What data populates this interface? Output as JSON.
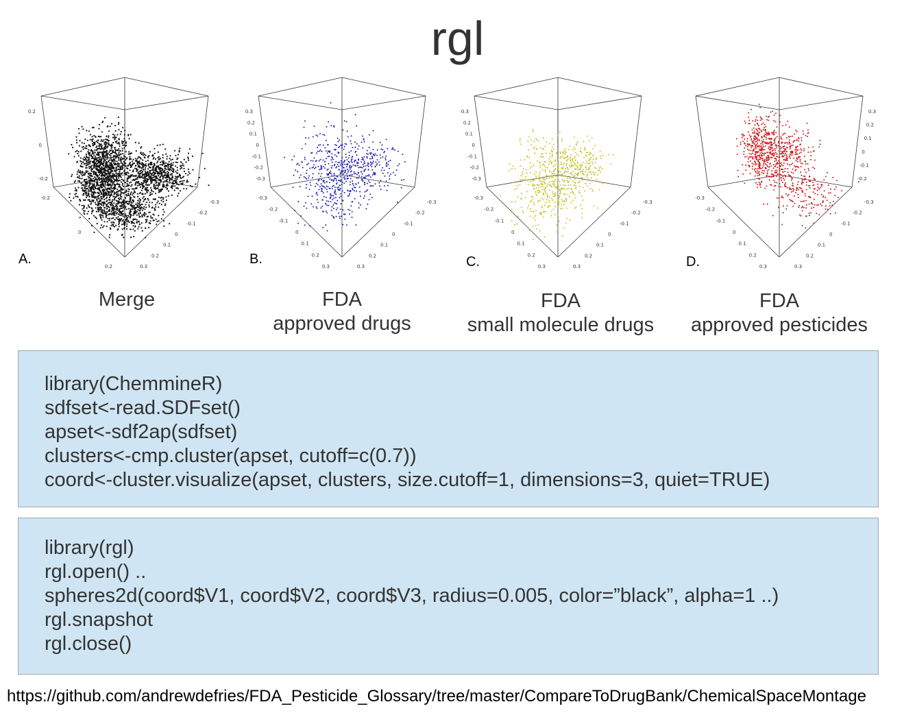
{
  "title": "rgl",
  "panels": [
    {
      "label": "A.",
      "caption": [
        "Merge"
      ],
      "color": "#111111"
    },
    {
      "label": "B.",
      "caption": [
        "FDA",
        "approved drugs"
      ],
      "color": "#1f22b5"
    },
    {
      "label": "C.",
      "caption": [
        "FDA",
        "small molecule drugs"
      ],
      "color": "#c7c32a"
    },
    {
      "label": "D.",
      "caption": [
        "FDA",
        "approved pesticides"
      ],
      "color": "#cc1a1a"
    }
  ],
  "code_block_1": [
    "library(ChemmineR)",
    "sdfset<-read.SDFset()",
    "apset<-sdf2ap(sdfset)",
    "clusters<-cmp.cluster(apset, cutoff=c(0.7))",
    "coord<-cluster.visualize(apset, clusters, size.cutoff=1, dimensions=3, quiet=TRUE)"
  ],
  "code_block_2": [
    "library(rgl)",
    "rgl.open() ..",
    "spheres2d(coord$V1, coord$V2, coord$V3, radius=0.005, color=”black”, alpha=1 ..)",
    "rgl.snapshot",
    "rgl.close()"
  ],
  "url": "https://github.com/andrewdefries/FDA_Pesticide_Glossary/tree/master/CompareToDrugBank/ChemicalSpaceMontage",
  "chart_data": [
    {
      "type": "scatter",
      "title": "Merge",
      "axis_ticks_vertical": [
        "0.2",
        "0",
        "-0.2"
      ],
      "axis_ticks_left": [
        "-0.2",
        "0",
        "0.2"
      ],
      "axis_ticks_right": [
        "-0.3",
        "-0.2",
        "-0.1",
        "0",
        "0.1",
        "0.2",
        "0.3"
      ]
    },
    {
      "type": "scatter",
      "title": "FDA approved drugs",
      "axis_ticks_vertical": [
        "0.3",
        "0.2",
        "0.1",
        "0",
        "-0.1",
        "-0.2",
        "-0.3"
      ],
      "axis_ticks_left": [
        "-0.3",
        "-0.2",
        "-0.1",
        "0",
        "0.1",
        "0.2",
        "0.3"
      ],
      "axis_ticks_right": [
        "-0.3",
        "-0.2",
        "-0.1",
        "0",
        "0.1",
        "0.2",
        "0.3"
      ]
    },
    {
      "type": "scatter",
      "title": "FDA small molecule drugs",
      "axis_ticks_vertical": [
        "0.3",
        "0.2",
        "0.1",
        "0",
        "-0.1",
        "-0.2",
        "-0.3"
      ],
      "axis_ticks_left": [
        "-0.3",
        "-0.2",
        "-0.1",
        "0",
        "0.1",
        "0.2",
        "0.3"
      ],
      "axis_ticks_right": [
        "-0.3",
        "-0.2",
        "-0.1",
        "0",
        "0.1",
        "0.2",
        "0.3"
      ]
    },
    {
      "type": "scatter",
      "title": "FDA approved pesticides",
      "axis_ticks_vertical": [
        "0.3",
        "0.2",
        "0.1",
        "0",
        "-0.1",
        "-0.2"
      ],
      "axis_ticks_left": [
        "-0.3",
        "-0.2",
        "-0.1",
        "0",
        "0.1",
        "0.2",
        "0.3"
      ],
      "axis_ticks_right": [
        "-0.3",
        "-0.2",
        "-0.1",
        "0",
        "0.1",
        "0.2",
        "0.3"
      ]
    }
  ]
}
